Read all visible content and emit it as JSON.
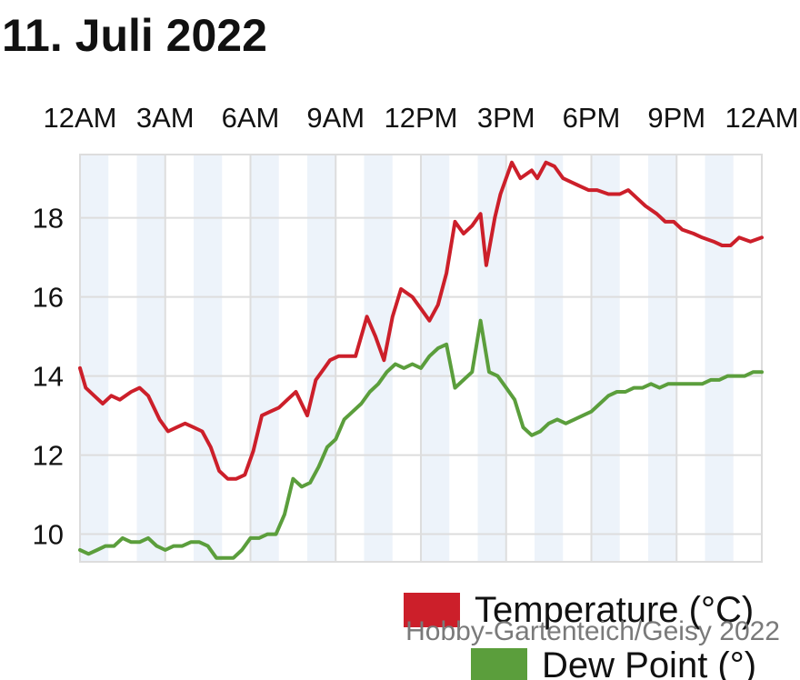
{
  "page": {
    "title": "11. Juli 2022"
  },
  "chart_data": {
    "type": "line",
    "title": "11. Juli 2022",
    "x_tick_labels": [
      "12AM",
      "3AM",
      "6AM",
      "9AM",
      "12PM",
      "3PM",
      "6PM",
      "9PM",
      "12AM"
    ],
    "x_range_hours": [
      0,
      24
    ],
    "y_tick_labels": [
      "10",
      "12",
      "14",
      "16",
      "18"
    ],
    "y_ticks": [
      10,
      12,
      14,
      16,
      18
    ],
    "ylim": [
      9.3,
      19.6
    ],
    "grid": true,
    "alternating_column_shading": true,
    "legend_placement": "bottom-right",
    "colors": {
      "temperature": "#cc1f2a",
      "dew_point": "#5b9e3c",
      "grid": "#dddddd",
      "shade": "#edf3fa"
    },
    "series": [
      {
        "name": "Temperature (°C)",
        "color": "#cc1f2a",
        "x": [
          0,
          0.2,
          0.5,
          0.8,
          1.1,
          1.4,
          1.8,
          2.1,
          2.4,
          2.8,
          3.1,
          3.4,
          3.7,
          4.0,
          4.3,
          4.6,
          4.9,
          5.2,
          5.5,
          5.8,
          6.1,
          6.4,
          6.7,
          7.0,
          7.3,
          7.6,
          8.0,
          8.3,
          8.6,
          8.8,
          9.1,
          9.4,
          9.7,
          10.1,
          10.4,
          10.7,
          11.0,
          11.3,
          11.7,
          12.0,
          12.3,
          12.6,
          12.9,
          13.2,
          13.5,
          13.8,
          14.1,
          14.3,
          14.6,
          14.8,
          15.2,
          15.5,
          15.9,
          16.1,
          16.4,
          16.7,
          17.0,
          17.3,
          17.6,
          17.9,
          18.2,
          18.6,
          19.0,
          19.3,
          19.6,
          19.9,
          20.3,
          20.6,
          20.9,
          21.2,
          21.6,
          21.9,
          22.3,
          22.6,
          22.9,
          23.2,
          23.6,
          24.0
        ],
        "values": [
          14.2,
          13.7,
          13.5,
          13.3,
          13.5,
          13.4,
          13.6,
          13.7,
          13.5,
          12.9,
          12.6,
          12.7,
          12.8,
          12.7,
          12.6,
          12.2,
          11.6,
          11.4,
          11.4,
          11.5,
          12.1,
          13.0,
          13.1,
          13.2,
          13.4,
          13.6,
          13.0,
          13.9,
          14.2,
          14.4,
          14.5,
          14.5,
          14.5,
          15.5,
          15.0,
          14.4,
          15.5,
          16.2,
          16.0,
          15.7,
          15.4,
          15.8,
          16.6,
          17.9,
          17.6,
          17.8,
          18.1,
          16.8,
          18.0,
          18.6,
          19.4,
          19.0,
          19.2,
          19.0,
          19.4,
          19.3,
          19.0,
          18.9,
          18.8,
          18.7,
          18.7,
          18.6,
          18.6,
          18.7,
          18.5,
          18.3,
          18.1,
          17.9,
          17.9,
          17.7,
          17.6,
          17.5,
          17.4,
          17.3,
          17.3,
          17.5,
          17.4,
          17.5
        ]
      },
      {
        "name": "Dew Point (°)",
        "color": "#5b9e3c",
        "x": [
          0,
          0.3,
          0.6,
          0.9,
          1.2,
          1.5,
          1.8,
          2.1,
          2.4,
          2.7,
          3.0,
          3.3,
          3.6,
          3.9,
          4.2,
          4.5,
          4.8,
          5.1,
          5.4,
          5.7,
          6.0,
          6.3,
          6.6,
          6.9,
          7.2,
          7.5,
          7.8,
          8.1,
          8.4,
          8.7,
          9.0,
          9.3,
          9.6,
          9.9,
          10.2,
          10.5,
          10.8,
          11.1,
          11.4,
          11.7,
          12.0,
          12.3,
          12.6,
          12.9,
          13.2,
          13.5,
          13.8,
          14.1,
          14.4,
          14.7,
          15.0,
          15.3,
          15.6,
          15.9,
          16.2,
          16.5,
          16.8,
          17.1,
          17.4,
          17.7,
          18.0,
          18.3,
          18.6,
          18.9,
          19.2,
          19.5,
          19.8,
          20.1,
          20.4,
          20.7,
          21.0,
          21.3,
          21.6,
          21.9,
          22.2,
          22.5,
          22.8,
          23.1,
          23.4,
          23.7,
          24.0
        ],
        "values": [
          9.6,
          9.5,
          9.6,
          9.7,
          9.7,
          9.9,
          9.8,
          9.8,
          9.9,
          9.7,
          9.6,
          9.7,
          9.7,
          9.8,
          9.8,
          9.7,
          9.4,
          9.4,
          9.4,
          9.6,
          9.9,
          9.9,
          10.0,
          10.0,
          10.5,
          11.4,
          11.2,
          11.3,
          11.7,
          12.2,
          12.4,
          12.9,
          13.1,
          13.3,
          13.6,
          13.8,
          14.1,
          14.3,
          14.2,
          14.3,
          14.2,
          14.5,
          14.7,
          14.8,
          13.7,
          13.9,
          14.1,
          15.4,
          14.1,
          14.0,
          13.7,
          13.4,
          12.7,
          12.5,
          12.6,
          12.8,
          12.9,
          12.8,
          12.9,
          13.0,
          13.1,
          13.3,
          13.5,
          13.6,
          13.6,
          13.7,
          13.7,
          13.8,
          13.7,
          13.8,
          13.8,
          13.8,
          13.8,
          13.8,
          13.9,
          13.9,
          14.0,
          14.0,
          14.0,
          14.1,
          14.1
        ]
      }
    ],
    "legend": [
      {
        "label": "Temperature (°C)",
        "color": "#cc1f2a"
      },
      {
        "label": "Dew Point (°)",
        "color": "#5b9e3c"
      }
    ],
    "watermark": "Hobby-Gartenteich/Geisy 2022"
  }
}
